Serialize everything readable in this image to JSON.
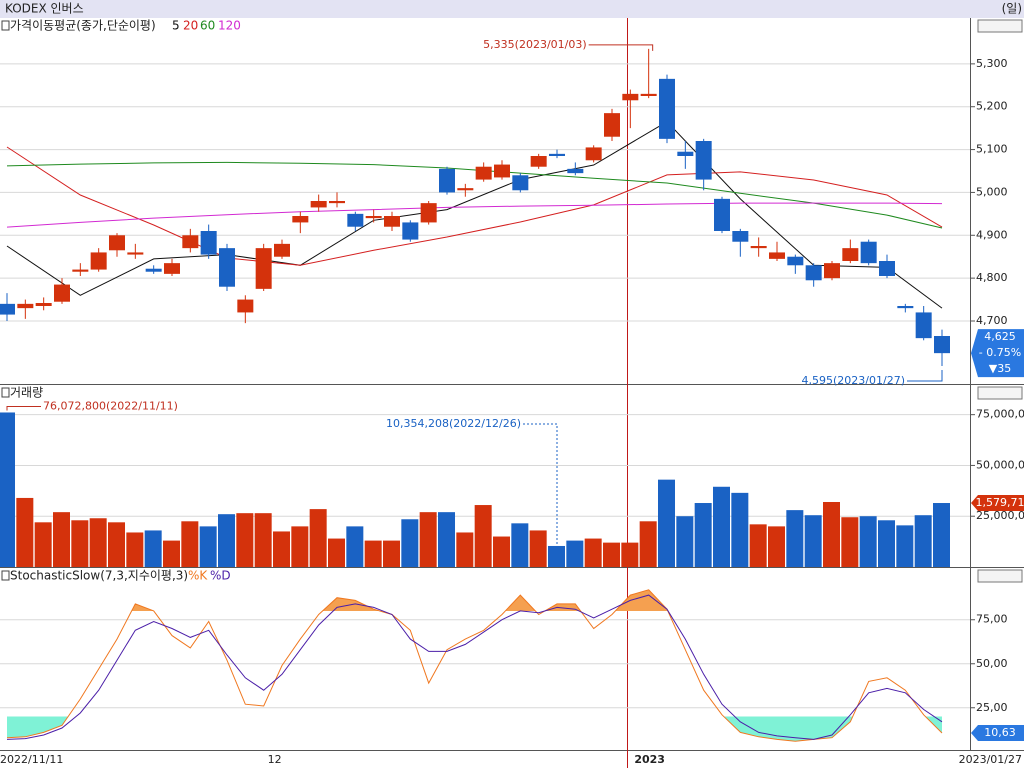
{
  "chart_data": [
    {
      "type": "candlestick",
      "title": "KODEX 인버스",
      "period": "(일)",
      "legend_title": "가격이동평균(종가,단순이평)",
      "categories": [
        "2022/11/11",
        null,
        null,
        null,
        null,
        null,
        null,
        null,
        null,
        null,
        null,
        null,
        null,
        null,
        "12",
        null,
        null,
        null,
        null,
        null,
        null,
        null,
        null,
        null,
        null,
        null,
        null,
        null,
        null,
        null,
        null,
        null,
        null,
        null,
        "2023",
        null,
        null,
        null,
        null,
        null,
        null,
        null,
        null,
        null,
        null,
        null,
        null,
        null,
        null,
        null,
        null,
        "2023/01/27"
      ],
      "open": [
        4740,
        4730,
        4735,
        4745,
        4815,
        4820,
        4865,
        4855,
        4822,
        4810,
        4870,
        4910,
        4870,
        4720,
        4775,
        4850,
        4930,
        4965,
        4975,
        4950,
        4940,
        4920,
        4930,
        4930,
        5055,
        5005,
        5030,
        5035,
        5040,
        5060,
        5090,
        5055,
        5075,
        5130,
        5215,
        5225,
        5265,
        5095,
        5120,
        4985,
        4910,
        4870,
        4845,
        4850,
        4830,
        4800,
        4840,
        4885,
        4840,
        4735,
        4720,
        4665
      ],
      "high": [
        4765,
        4750,
        4755,
        4800,
        4835,
        4870,
        4905,
        4880,
        4830,
        4845,
        4915,
        4925,
        4880,
        4760,
        4880,
        4890,
        4955,
        4995,
        5000,
        4955,
        4960,
        4955,
        4935,
        4980,
        5060,
        5020,
        5070,
        5075,
        5045,
        5090,
        5100,
        5070,
        5110,
        5195,
        5240,
        5335,
        5275,
        5120,
        5125,
        4990,
        4915,
        4895,
        4885,
        4855,
        4835,
        4840,
        4890,
        4890,
        4855,
        4740,
        4735,
        4680
      ],
      "low": [
        4700,
        4705,
        4725,
        4740,
        4805,
        4815,
        4850,
        4845,
        4810,
        4805,
        4860,
        4845,
        4770,
        4695,
        4770,
        4845,
        4905,
        4955,
        4965,
        4910,
        4930,
        4910,
        4885,
        4925,
        4995,
        4990,
        5025,
        5030,
        5000,
        5055,
        5080,
        5040,
        5070,
        5120,
        5150,
        5220,
        5115,
        5055,
        5005,
        4905,
        4850,
        4850,
        4840,
        4810,
        4780,
        4795,
        4835,
        4830,
        4800,
        4720,
        4655,
        4595
      ],
      "close": [
        4715,
        4740,
        4742,
        4785,
        4820,
        4860,
        4900,
        4860,
        4815,
        4835,
        4900,
        4855,
        4780,
        4750,
        4870,
        4880,
        4945,
        4980,
        4980,
        4920,
        4945,
        4945,
        4890,
        4975,
        5000,
        5010,
        5060,
        5065,
        5005,
        5085,
        5085,
        5045,
        5105,
        5185,
        5230,
        5230,
        5125,
        5085,
        5030,
        4910,
        4885,
        4875,
        4860,
        4830,
        4795,
        4835,
        4870,
        4835,
        4805,
        4730,
        4660,
        4625
      ],
      "up_color": "#d4320c",
      "down_color": "#1a62c4",
      "series": [
        {
          "name": "5",
          "color": "#111111",
          "x": [
            0,
            4,
            8,
            12,
            16,
            20,
            24,
            28,
            32,
            36,
            40,
            44,
            48,
            51
          ],
          "values": [
            4875,
            4760,
            4845,
            4855,
            4830,
            4935,
            4960,
            5030,
            5064,
            5165,
            4985,
            4830,
            4825,
            4730
          ]
        },
        {
          "name": "20",
          "color": "#d42020",
          "x": [
            0,
            4,
            8,
            12,
            16,
            20,
            24,
            28,
            32,
            36,
            40,
            44,
            48,
            51
          ],
          "values": [
            5106,
            4994,
            4924,
            4847,
            4830,
            4865,
            4896,
            4931,
            4971,
            5041,
            5048,
            5029,
            4994,
            4919
          ]
        },
        {
          "name": "60",
          "color": "#1f8a1f",
          "x": [
            0,
            4,
            8,
            12,
            16,
            20,
            24,
            28,
            32,
            36,
            40,
            44,
            48,
            51
          ],
          "values": [
            5062,
            5066,
            5069,
            5070,
            5068,
            5065,
            5057,
            5045,
            5033,
            5022,
            4998,
            4975,
            4947,
            4917
          ]
        },
        {
          "name": "120",
          "color": "#d22ad2",
          "x": [
            0,
            4,
            8,
            12,
            16,
            20,
            24,
            28,
            32,
            36,
            40,
            44,
            48,
            51
          ],
          "values": [
            4919,
            4930,
            4940,
            4948,
            4955,
            4960,
            4965,
            4968,
            4970,
            4973,
            4975,
            4975,
            4975,
            4974
          ]
        }
      ],
      "ylim": [
        4553,
        5407
      ],
      "yticks": [
        {
          "value": 5300,
          "label": "5,300"
        },
        {
          "value": 5200,
          "label": "5,200"
        },
        {
          "value": 5100,
          "label": "5,100"
        },
        {
          "value": 5000,
          "label": "5,000"
        },
        {
          "value": 4900,
          "label": "4,900"
        },
        {
          "value": 4800,
          "label": "4,800"
        },
        {
          "value": 4700,
          "label": "4,700"
        }
      ],
      "grid": true,
      "high_label": "5,335(2023/01/03)",
      "low_label": "4,595(2023/01/27)",
      "last_tag": [
        "4,625",
        "- 0.75%",
        "▼35"
      ]
    },
    {
      "type": "bar",
      "title": "거래량",
      "values": [
        76072800,
        34000000,
        22000000,
        27000000,
        23000000,
        24000000,
        22000000,
        17000000,
        18000000,
        13000000,
        22500000,
        20000000,
        26000000,
        26500000,
        26500000,
        17500000,
        20000000,
        28500000,
        14000000,
        20000000,
        13000000,
        13000000,
        23500000,
        27000000,
        27000000,
        17000000,
        30500000,
        15000000,
        21500000,
        18000000,
        10354208,
        13000000,
        14000000,
        12000000,
        12000000,
        22500000,
        43000000,
        25000000,
        31500000,
        39500000,
        36500000,
        21000000,
        20000000,
        28000000,
        25500000,
        32000000,
        24500000,
        25000000,
        23000000,
        20500000,
        25500000,
        31500000
      ],
      "ylim": [
        0,
        89600000
      ],
      "yticks": [
        {
          "value": 75000000,
          "label": "75,000,00"
        },
        {
          "value": 50000000,
          "label": "50,000,00"
        },
        {
          "value": 25000000,
          "label": "25,000,00"
        }
      ],
      "grid": true,
      "max_label": "76,072,800(2022/11/11)",
      "min_label": "10,354,208(2022/12/26)",
      "last_tag": "1,579,71"
    },
    {
      "type": "line",
      "title": "StochasticSlow(7,3,지수이평,3)",
      "series": [
        {
          "name": "%K",
          "color": "#f07820",
          "values": [
            8,
            8.5,
            11,
            15,
            30,
            47,
            64,
            84,
            80,
            66,
            59,
            74,
            52,
            27,
            26,
            49,
            64,
            78,
            87.5,
            86,
            81,
            78,
            69,
            39,
            58,
            64,
            69,
            78,
            89,
            78,
            84,
            84,
            70,
            78,
            89,
            92,
            81,
            58,
            35,
            21,
            11,
            8.5,
            7,
            6,
            7,
            8,
            17,
            40,
            42,
            35,
            21,
            10.63
          ]
        },
        {
          "name": "%D",
          "color": "#4b1fa8",
          "values": [
            7,
            7.5,
            9.5,
            13.5,
            22,
            35,
            52,
            69,
            74,
            70,
            65,
            69,
            55,
            42,
            35,
            44,
            58,
            72,
            82,
            84,
            82,
            78,
            64,
            57,
            57,
            61,
            68,
            75,
            80,
            79,
            82,
            81,
            76,
            81,
            86,
            89,
            81,
            64,
            44,
            27,
            17,
            11,
            9,
            8,
            7,
            9.5,
            21,
            33.5,
            36,
            33.5,
            24,
            17
          ]
        }
      ],
      "ylim": [
        1,
        104.4
      ],
      "yticks": [
        {
          "value": 75,
          "label": "75,00"
        },
        {
          "value": 50,
          "label": "50,00"
        },
        {
          "value": 25,
          "label": "25,00"
        }
      ],
      "grid": true,
      "bands": {
        "upper": 80,
        "lower": 20,
        "upper_color": "#f5a050",
        "lower_color": "#7ff2d6"
      },
      "last_tag": "10,63"
    }
  ]
}
